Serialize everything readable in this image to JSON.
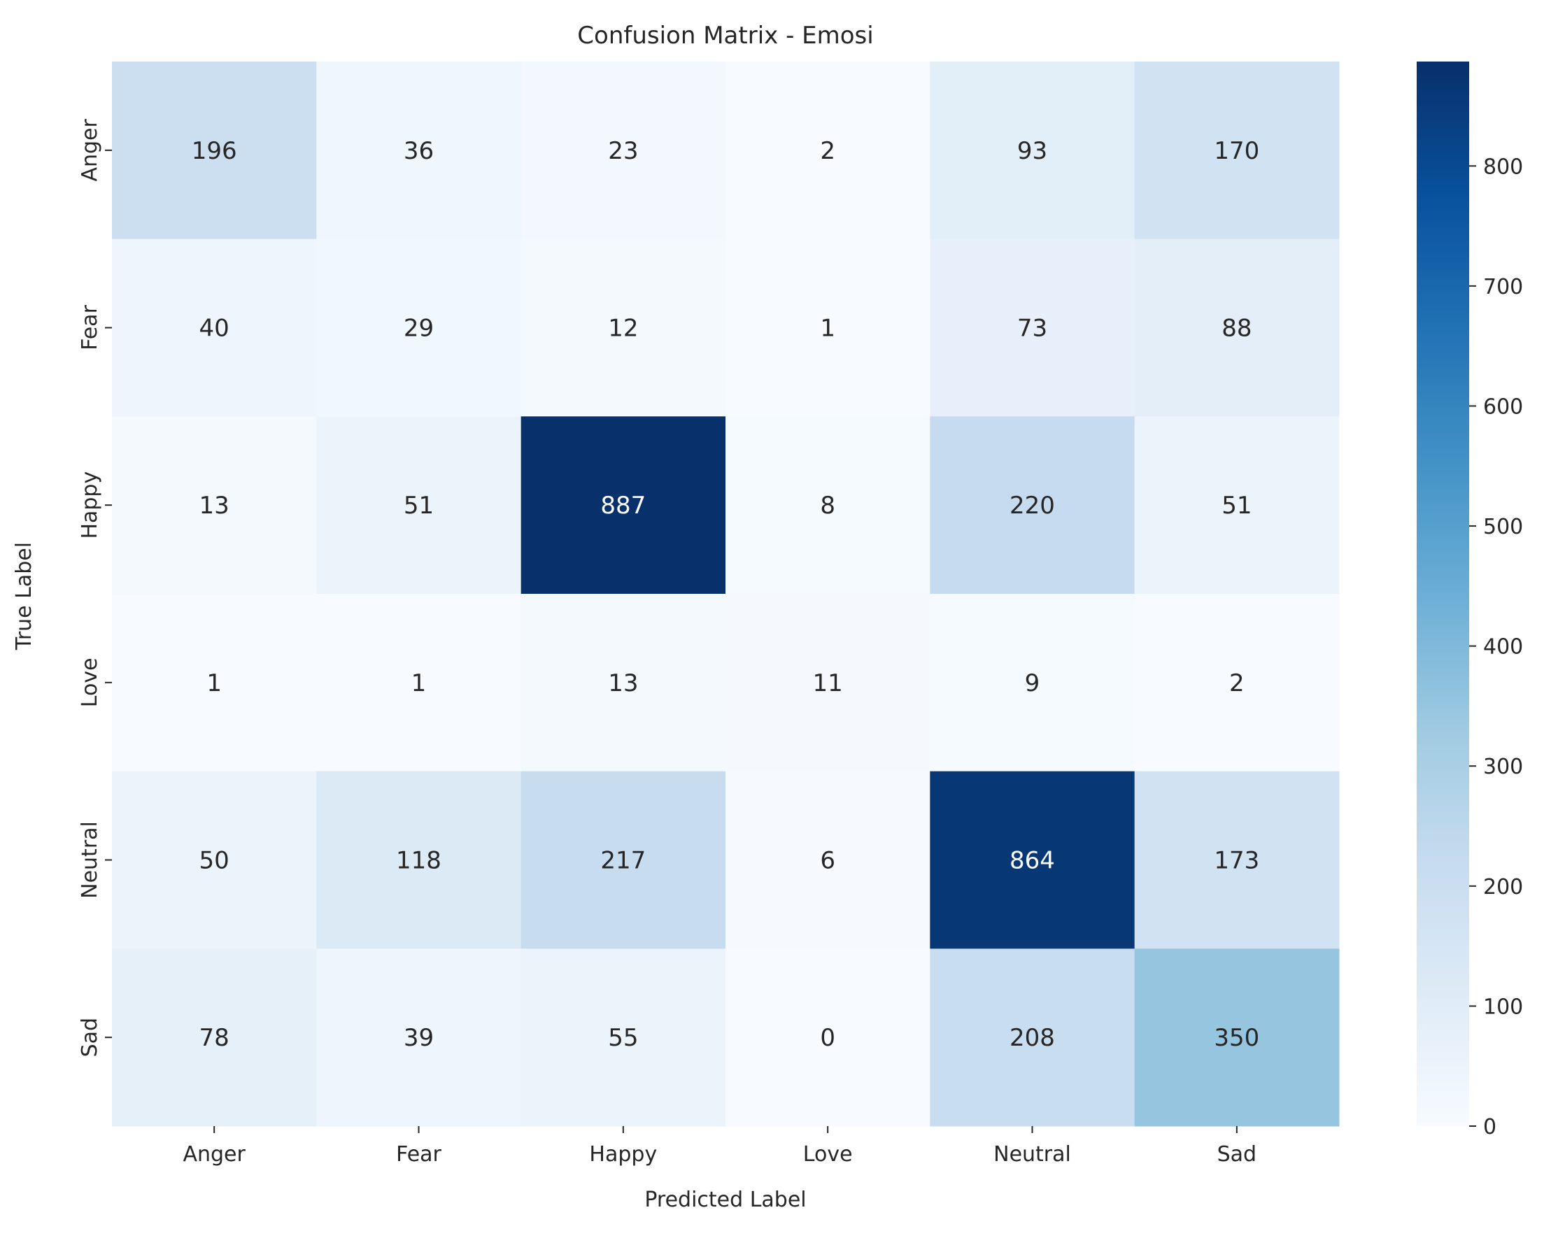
{
  "chart_data": {
    "type": "heatmap",
    "title": "Confusion Matrix - Emosi",
    "xlabel": "Predicted Label",
    "ylabel": "True Label",
    "x_categories": [
      "Anger",
      "Fear",
      "Happy",
      "Love",
      "Neutral",
      "Sad"
    ],
    "y_categories": [
      "Anger",
      "Fear",
      "Happy",
      "Love",
      "Neutral",
      "Sad"
    ],
    "values": [
      [
        196,
        36,
        23,
        2,
        93,
        170
      ],
      [
        40,
        29,
        12,
        1,
        73,
        88
      ],
      [
        13,
        51,
        887,
        8,
        220,
        51
      ],
      [
        1,
        1,
        13,
        11,
        9,
        2
      ],
      [
        50,
        118,
        217,
        6,
        864,
        173
      ],
      [
        78,
        39,
        55,
        0,
        208,
        350
      ]
    ],
    "colormap": "Blues",
    "colorbar": {
      "min": 0,
      "max": 887,
      "ticks": [
        0,
        100,
        200,
        300,
        400,
        500,
        600,
        700,
        800
      ]
    },
    "annotation_colors": {
      "light_cell": "#262626",
      "dark_cell": "#ffffff"
    }
  }
}
